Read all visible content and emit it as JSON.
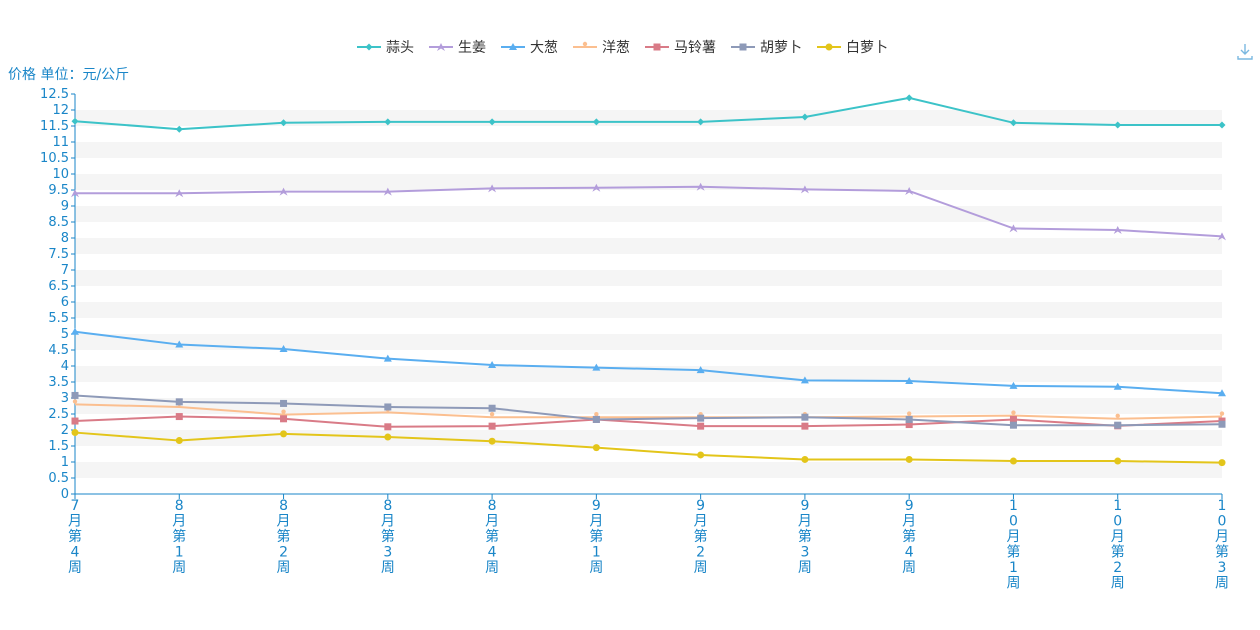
{
  "toolbar": {
    "download_icon": "download-icon"
  },
  "chart_data": {
    "type": "line",
    "ylabel": "价格 单位：元/公斤",
    "ylim": [
      0,
      12.5
    ],
    "y_ticks": [
      0,
      0.5,
      1,
      1.5,
      2,
      2.5,
      3,
      3.5,
      4,
      4.5,
      5,
      5.5,
      6,
      6.5,
      7,
      7.5,
      8,
      8.5,
      9,
      9.5,
      10,
      10.5,
      11,
      11.5,
      12,
      12.5
    ],
    "y_tick_labels": [
      "0",
      "0.5",
      "1",
      "1.5",
      "2",
      "2.5",
      "3",
      "3.5",
      "4",
      "4.5",
      "5",
      "5.5",
      "6",
      "6.5",
      "7",
      "7.5",
      "8",
      "8.5",
      "9",
      "9.5",
      "10",
      "10.5",
      "11",
      "11.5",
      "12",
      "12.5"
    ],
    "categories": [
      "7月第4周",
      "8月第1周",
      "8月第2周",
      "8月第3周",
      "8月第4周",
      "9月第1周",
      "9月第2周",
      "9月第3周",
      "9月第4周",
      "10月第1周",
      "10月第2周",
      "10月第3周"
    ],
    "legend_position": "top-center",
    "grid": "alternating-bands",
    "series": [
      {
        "name": "蒜头",
        "color": "#3cc3c8",
        "marker": "diamond",
        "values": [
          11.65,
          11.4,
          11.6,
          11.63,
          11.63,
          11.63,
          11.63,
          11.78,
          12.38,
          11.6,
          11.53,
          11.53
        ]
      },
      {
        "name": "生姜",
        "color": "#b39ddb",
        "marker": "arrow",
        "values": [
          9.4,
          9.4,
          9.45,
          9.45,
          9.55,
          9.57,
          9.6,
          9.52,
          9.47,
          8.3,
          8.25,
          8.05
        ]
      },
      {
        "name": "大葱",
        "color": "#5aaef0",
        "marker": "triangle",
        "values": [
          5.07,
          4.67,
          4.53,
          4.23,
          4.03,
          3.95,
          3.87,
          3.55,
          3.53,
          3.38,
          3.35,
          3.15
        ]
      },
      {
        "name": "洋葱",
        "color": "#fbbf90",
        "marker": "pin",
        "values": [
          2.8,
          2.72,
          2.48,
          2.55,
          2.4,
          2.4,
          2.4,
          2.4,
          2.42,
          2.45,
          2.35,
          2.42
        ]
      },
      {
        "name": "马铃薯",
        "color": "#d97b87",
        "marker": "square",
        "values": [
          2.28,
          2.42,
          2.35,
          2.1,
          2.12,
          2.33,
          2.12,
          2.12,
          2.17,
          2.33,
          2.13,
          2.28
        ]
      },
      {
        "name": "胡萝卜",
        "color": "#8e9ab8",
        "marker": "square",
        "values": [
          3.08,
          2.88,
          2.83,
          2.72,
          2.68,
          2.33,
          2.37,
          2.4,
          2.33,
          2.15,
          2.15,
          2.18
        ]
      },
      {
        "name": "白萝卜",
        "color": "#e3c51a",
        "marker": "circle",
        "values": [
          1.92,
          1.67,
          1.88,
          1.78,
          1.65,
          1.45,
          1.22,
          1.08,
          1.08,
          1.03,
          1.03,
          0.98
        ]
      }
    ]
  }
}
